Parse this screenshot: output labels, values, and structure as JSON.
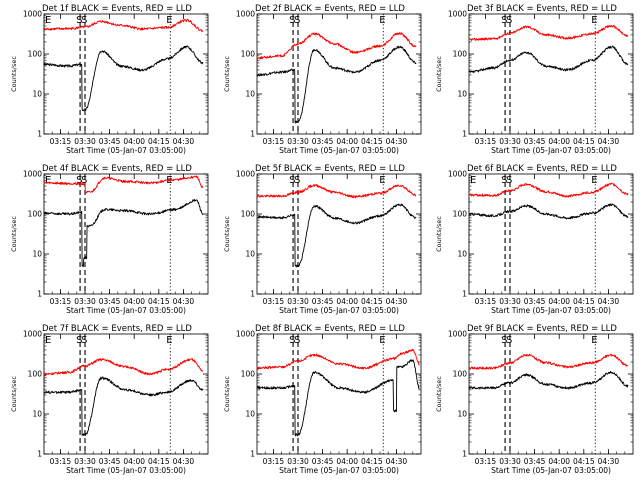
{
  "figure": {
    "colors": {
      "background": "#ffffff",
      "axes": "#000000",
      "events": "#000000",
      "lld": "#ff0000"
    }
  },
  "chart_data": [
    {
      "type": "line",
      "title": "Det 1f BLACK = Events, RED = LLD",
      "xlabel": "Start Time (05-Jan-07 03:05:00)",
      "ylabel": "Counts/sec",
      "x_tick_labels": [
        "03:15",
        "03:30",
        "03:45",
        "04:00",
        "04:15",
        "04:30"
      ],
      "y_tick_labels": [
        "1",
        "10",
        "100",
        "1000"
      ],
      "xlim": [
        "03:05",
        "04:45"
      ],
      "ylim": [
        1,
        1000
      ],
      "yscale": "log",
      "markers": [
        {
          "label": "E",
          "time": "03:05",
          "style": "dotted"
        },
        {
          "label": "S",
          "time": "03:27",
          "style": "dashed"
        },
        {
          "label": "S",
          "time": "03:30",
          "style": "dashed"
        },
        {
          "label": "E",
          "time": "04:22",
          "style": "dotted"
        }
      ],
      "series": [
        {
          "name": "Events",
          "color": "#000000",
          "x": [
            "03:05",
            "03:20",
            "03:28",
            "03:30",
            "03:40",
            "03:52",
            "04:05",
            "04:20",
            "04:32",
            "04:42"
          ],
          "y": [
            55,
            50,
            55,
            4,
            120,
            50,
            40,
            75,
            150,
            60
          ]
        },
        {
          "name": "LLD",
          "color": "#ff0000",
          "x": [
            "03:05",
            "03:20",
            "03:30",
            "03:40",
            "03:52",
            "04:05",
            "04:20",
            "04:32",
            "04:42"
          ],
          "y": [
            420,
            430,
            470,
            650,
            520,
            420,
            460,
            700,
            380
          ]
        }
      ]
    },
    {
      "type": "line",
      "title": "Det 2f BLACK = Events, RED = LLD",
      "xlabel": "Start Time (05-Jan-07 03:05:00)",
      "ylabel": "Counts/sec",
      "x_tick_labels": [
        "03:15",
        "03:30",
        "03:45",
        "04:00",
        "04:15",
        "04:30"
      ],
      "y_tick_labels": [
        "1",
        "10",
        "100",
        "1000"
      ],
      "xlim": [
        "03:05",
        "04:45"
      ],
      "ylim": [
        1,
        1000
      ],
      "yscale": "log",
      "markers": [
        {
          "label": "S",
          "time": "03:27",
          "style": "dashed"
        },
        {
          "label": "S",
          "time": "03:30",
          "style": "dashed"
        },
        {
          "label": "E",
          "time": "04:22",
          "style": "dotted"
        }
      ],
      "series": [
        {
          "name": "Events",
          "color": "#000000",
          "x": [
            "03:05",
            "03:20",
            "03:28",
            "03:30",
            "03:40",
            "03:52",
            "04:05",
            "04:20",
            "04:32",
            "04:42"
          ],
          "y": [
            30,
            35,
            40,
            2,
            130,
            45,
            35,
            70,
            150,
            60
          ]
        },
        {
          "name": "LLD",
          "color": "#ff0000",
          "x": [
            "03:05",
            "03:20",
            "03:30",
            "03:40",
            "03:52",
            "04:05",
            "04:20",
            "04:32",
            "04:42"
          ],
          "y": [
            80,
            90,
            180,
            320,
            180,
            110,
            160,
            330,
            150
          ]
        }
      ]
    },
    {
      "type": "line",
      "title": "Det 3f BLACK = Events, RED = LLD",
      "xlabel": "Start Time (05-Jan-07 03:05:00)",
      "ylabel": "Counts/sec",
      "x_tick_labels": [
        "03:15",
        "03:30",
        "03:45",
        "04:00",
        "04:15",
        "04:30"
      ],
      "y_tick_labels": [
        "1",
        "10",
        "100",
        "1000"
      ],
      "xlim": [
        "03:05",
        "04:45"
      ],
      "ylim": [
        1,
        1000
      ],
      "yscale": "log",
      "markers": [
        {
          "label": "S",
          "time": "03:27",
          "style": "dashed"
        },
        {
          "label": "S",
          "time": "03:30",
          "style": "dashed"
        },
        {
          "label": "E",
          "time": "04:22",
          "style": "dotted"
        }
      ],
      "series": [
        {
          "name": "Events",
          "color": "#000000",
          "x": [
            "03:05",
            "03:20",
            "03:30",
            "03:40",
            "03:52",
            "04:05",
            "04:20",
            "04:32",
            "04:42"
          ],
          "y": [
            35,
            45,
            70,
            110,
            50,
            40,
            70,
            150,
            55
          ]
        },
        {
          "name": "LLD",
          "color": "#ff0000",
          "x": [
            "03:05",
            "03:20",
            "03:30",
            "03:40",
            "03:52",
            "04:05",
            "04:20",
            "04:32",
            "04:42"
          ],
          "y": [
            230,
            240,
            330,
            480,
            300,
            250,
            320,
            500,
            280
          ]
        }
      ]
    },
    {
      "type": "line",
      "title": "Det 4f BLACK = Events, RED = LLD",
      "xlabel": "Start Time (05-Jan-07 03:05:00)",
      "ylabel": "Counts/sec",
      "x_tick_labels": [
        "03:15",
        "03:30",
        "03:45",
        "04:00",
        "04:15",
        "04:30"
      ],
      "y_tick_labels": [
        "1",
        "10",
        "100",
        "1000"
      ],
      "xlim": [
        "03:05",
        "04:45"
      ],
      "ylim": [
        1,
        1000
      ],
      "yscale": "log",
      "markers": [
        {
          "label": "E",
          "time": "03:05",
          "style": "dotted"
        },
        {
          "label": "S",
          "time": "03:27",
          "style": "dashed"
        },
        {
          "label": "S",
          "time": "03:30",
          "style": "dashed"
        },
        {
          "label": "E",
          "time": "04:22",
          "style": "dotted"
        }
      ],
      "series": [
        {
          "name": "Events",
          "color": "#000000",
          "x": [
            "03:05",
            "03:20",
            "03:28",
            "03:29",
            "03:31",
            "03:33",
            "03:42",
            "03:55",
            "04:10",
            "04:25",
            "04:38",
            "04:42"
          ],
          "y": [
            105,
            100,
            110,
            5,
            8,
            50,
            130,
            120,
            100,
            130,
            220,
            100
          ]
        },
        {
          "name": "LLD",
          "color": "#ff0000",
          "x": [
            "03:05",
            "03:20",
            "03:30",
            "03:33",
            "03:42",
            "03:55",
            "04:10",
            "04:25",
            "04:38",
            "04:42"
          ],
          "y": [
            600,
            580,
            560,
            350,
            800,
            650,
            600,
            720,
            850,
            450
          ]
        }
      ]
    },
    {
      "type": "line",
      "title": "Det 5f BLACK = Events, RED = LLD",
      "xlabel": "Start Time (05-Jan-07 03:05:00)",
      "ylabel": "Counts/sec",
      "x_tick_labels": [
        "03:15",
        "03:30",
        "03:45",
        "04:00",
        "04:15",
        "04:30"
      ],
      "y_tick_labels": [
        "1",
        "10",
        "100",
        "1000"
      ],
      "xlim": [
        "03:05",
        "04:45"
      ],
      "ylim": [
        1,
        1000
      ],
      "yscale": "log",
      "markers": [
        {
          "label": "S",
          "time": "03:27",
          "style": "dashed"
        },
        {
          "label": "S",
          "time": "03:30",
          "style": "dashed"
        },
        {
          "label": "E",
          "time": "04:22",
          "style": "dotted"
        }
      ],
      "series": [
        {
          "name": "Events",
          "color": "#000000",
          "x": [
            "03:05",
            "03:20",
            "03:28",
            "03:30",
            "03:40",
            "03:52",
            "04:05",
            "04:20",
            "04:32",
            "04:42"
          ],
          "y": [
            85,
            80,
            95,
            5,
            160,
            80,
            60,
            90,
            170,
            80
          ]
        },
        {
          "name": "LLD",
          "color": "#ff0000",
          "x": [
            "03:05",
            "03:20",
            "03:30",
            "03:40",
            "03:52",
            "04:05",
            "04:20",
            "04:32",
            "04:42"
          ],
          "y": [
            280,
            280,
            350,
            520,
            350,
            270,
            330,
            520,
            300
          ]
        }
      ]
    },
    {
      "type": "line",
      "title": "Det 6f BLACK = Events, RED = LLD",
      "xlabel": "Start Time (05-Jan-07 03:05:00)",
      "ylabel": "Counts/sec",
      "x_tick_labels": [
        "03:15",
        "03:30",
        "03:45",
        "04:00",
        "04:15",
        "04:30"
      ],
      "y_tick_labels": [
        "1",
        "10",
        "100",
        "1000"
      ],
      "xlim": [
        "03:05",
        "04:45"
      ],
      "ylim": [
        1,
        1000
      ],
      "yscale": "log",
      "markers": [
        {
          "label": "E",
          "time": "03:05",
          "style": "dotted"
        },
        {
          "label": "S",
          "time": "03:27",
          "style": "dashed"
        },
        {
          "label": "S",
          "time": "03:30",
          "style": "dashed"
        },
        {
          "label": "E",
          "time": "04:22",
          "style": "dotted"
        }
      ],
      "series": [
        {
          "name": "Events",
          "color": "#000000",
          "x": [
            "03:05",
            "03:20",
            "03:30",
            "03:40",
            "03:52",
            "04:05",
            "04:20",
            "04:32",
            "04:42"
          ],
          "y": [
            100,
            90,
            115,
            160,
            100,
            80,
            105,
            170,
            85
          ]
        },
        {
          "name": "LLD",
          "color": "#ff0000",
          "x": [
            "03:05",
            "03:20",
            "03:30",
            "03:40",
            "03:52",
            "04:05",
            "04:20",
            "04:32",
            "04:42"
          ],
          "y": [
            300,
            290,
            380,
            560,
            360,
            280,
            350,
            560,
            310
          ]
        }
      ]
    },
    {
      "type": "line",
      "title": "Det 7f BLACK = Events, RED = LLD",
      "xlabel": "Start Time (05-Jan-07 03:05:00)",
      "ylabel": "Counts/sec",
      "x_tick_labels": [
        "03:15",
        "03:30",
        "03:45",
        "04:00",
        "04:15",
        "04:30"
      ],
      "y_tick_labels": [
        "1",
        "10",
        "100",
        "1000"
      ],
      "xlim": [
        "03:05",
        "04:45"
      ],
      "ylim": [
        1,
        1000
      ],
      "yscale": "log",
      "markers": [
        {
          "label": "E",
          "time": "03:05",
          "style": "dotted"
        },
        {
          "label": "S",
          "time": "03:27",
          "style": "dashed"
        },
        {
          "label": "S",
          "time": "03:30",
          "style": "dashed"
        },
        {
          "label": "E",
          "time": "04:22",
          "style": "dotted"
        }
      ],
      "series": [
        {
          "name": "Events",
          "color": "#000000",
          "x": [
            "03:05",
            "03:20",
            "03:28",
            "03:30",
            "03:40",
            "03:55",
            "04:10",
            "04:20",
            "04:35",
            "04:42"
          ],
          "y": [
            35,
            35,
            40,
            3,
            80,
            40,
            30,
            35,
            70,
            40
          ]
        },
        {
          "name": "LLD",
          "color": "#ff0000",
          "x": [
            "03:05",
            "03:20",
            "03:30",
            "03:40",
            "03:55",
            "04:10",
            "04:20",
            "04:35",
            "04:42"
          ],
          "y": [
            100,
            110,
            160,
            230,
            150,
            100,
            130,
            230,
            120
          ]
        }
      ]
    },
    {
      "type": "line",
      "title": "Det 8f BLACK = Events, RED = LLD",
      "xlabel": "Start Time (05-Jan-07 03:05:00)",
      "ylabel": "Counts/sec",
      "x_tick_labels": [
        "03:15",
        "03:30",
        "03:45",
        "04:00",
        "04:15",
        "04:30"
      ],
      "y_tick_labels": [
        "1",
        "10",
        "100",
        "1000"
      ],
      "xlim": [
        "03:05",
        "04:45"
      ],
      "ylim": [
        1,
        1000
      ],
      "yscale": "log",
      "markers": [
        {
          "label": "S",
          "time": "03:27",
          "style": "dashed"
        },
        {
          "label": "S",
          "time": "03:30",
          "style": "dashed"
        },
        {
          "label": "E",
          "time": "04:22",
          "style": "dotted"
        }
      ],
      "series": [
        {
          "name": "Events",
          "color": "#000000",
          "x": [
            "03:05",
            "03:20",
            "03:28",
            "03:30",
            "03:40",
            "03:55",
            "04:10",
            "04:28",
            "04:30",
            "04:33",
            "04:40",
            "04:44"
          ],
          "y": [
            45,
            45,
            50,
            3,
            110,
            45,
            35,
            70,
            12,
            150,
            220,
            45
          ]
        },
        {
          "name": "LLD",
          "color": "#ff0000",
          "x": [
            "03:05",
            "03:20",
            "03:30",
            "03:40",
            "03:55",
            "04:10",
            "04:28",
            "04:33",
            "04:40",
            "04:44"
          ],
          "y": [
            140,
            150,
            210,
            300,
            180,
            140,
            240,
            320,
            400,
            180
          ]
        }
      ]
    },
    {
      "type": "line",
      "title": "Det 9f BLACK = Events, RED = LLD",
      "xlabel": "Start Time (05-Jan-07 03:05:00)",
      "ylabel": "Counts/sec",
      "x_tick_labels": [
        "03:15",
        "03:30",
        "03:45",
        "04:00",
        "04:15",
        "04:30"
      ],
      "y_tick_labels": [
        "1",
        "10",
        "100",
        "1000"
      ],
      "xlim": [
        "03:05",
        "04:45"
      ],
      "ylim": [
        1,
        1000
      ],
      "yscale": "log",
      "markers": [
        {
          "label": "S",
          "time": "03:27",
          "style": "dashed"
        },
        {
          "label": "S",
          "time": "03:30",
          "style": "dashed"
        },
        {
          "label": "E",
          "time": "04:22",
          "style": "dotted"
        }
      ],
      "series": [
        {
          "name": "Events",
          "color": "#000000",
          "x": [
            "03:05",
            "03:20",
            "03:30",
            "03:40",
            "03:52",
            "04:05",
            "04:20",
            "04:32",
            "04:42"
          ],
          "y": [
            45,
            45,
            60,
            95,
            55,
            45,
            60,
            110,
            50
          ]
        },
        {
          "name": "LLD",
          "color": "#ff0000",
          "x": [
            "03:05",
            "03:20",
            "03:30",
            "03:40",
            "03:52",
            "04:05",
            "04:20",
            "04:32",
            "04:42"
          ],
          "y": [
            140,
            140,
            190,
            300,
            190,
            150,
            190,
            300,
            160
          ]
        }
      ]
    }
  ]
}
